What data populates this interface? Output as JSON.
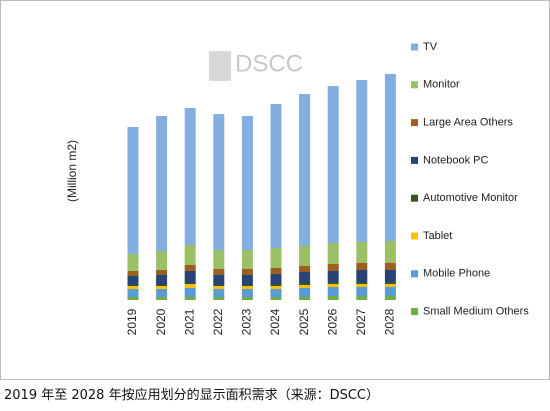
{
  "chart_data": {
    "type": "stacked-bar",
    "watermark": "DSCC",
    "ylabel": "(Million m2)",
    "caption": "2019 年至 2028 年按应用划分的显示面积需求（来源：DSCC）",
    "categories": [
      "2019",
      "2020",
      "2021",
      "2022",
      "2023",
      "2024",
      "2025",
      "2026",
      "2027",
      "2028"
    ],
    "ylim": [
      0,
      250
    ],
    "series": [
      {
        "name": "Small Medium Others",
        "color": "#70ad47",
        "values": [
          3,
          3,
          3,
          3,
          3,
          3,
          3,
          4,
          4,
          4
        ]
      },
      {
        "name": "Mobile Phone",
        "color": "#5b9bd5",
        "values": [
          8,
          8,
          9,
          8,
          8,
          8,
          9,
          9,
          9,
          9
        ]
      },
      {
        "name": "Tablet",
        "color": "#ffc000",
        "values": [
          3,
          3,
          4,
          3,
          3,
          3,
          3,
          3,
          3,
          3
        ]
      },
      {
        "name": "Automotive Monitor",
        "color": "#375623",
        "values": [
          1,
          1,
          1,
          1,
          1,
          2,
          2,
          2,
          2,
          2
        ]
      },
      {
        "name": "Notebook PC",
        "color": "#264478",
        "values": [
          9,
          10,
          12,
          10,
          10,
          10,
          11,
          11,
          12,
          12
        ]
      },
      {
        "name": "Large Area Others",
        "color": "#9e5e22",
        "values": [
          5,
          5,
          6,
          6,
          6,
          6,
          6,
          7,
          7,
          7
        ]
      },
      {
        "name": "Monitor",
        "color": "#9bc068",
        "values": [
          17,
          19,
          20,
          19,
          19,
          20,
          20,
          21,
          21,
          22
        ]
      },
      {
        "name": "TV",
        "color": "#85aee0",
        "values": [
          127,
          135,
          137,
          136,
          134,
          144,
          152,
          157,
          162,
          167
        ]
      }
    ]
  }
}
